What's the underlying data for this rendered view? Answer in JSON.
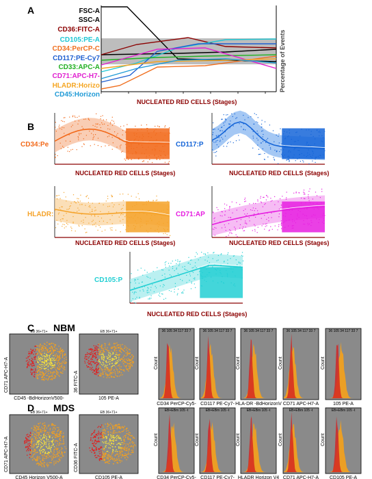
{
  "panels": {
    "a": "A",
    "b": "B",
    "c": "C",
    "d": "D",
    "nbm": "NBM",
    "mds": "MDS"
  },
  "panel_a": {
    "markers": [
      {
        "label": "FSC-A",
        "color": "#000000"
      },
      {
        "label": "SSC-A",
        "color": "#000000"
      },
      {
        "label": "CD36:FITC-A",
        "color": "#8b0000"
      },
      {
        "label": "CD105:PE-A",
        "color": "#1fc7d4"
      },
      {
        "label": "CD34:PerCP-C",
        "color": "#f07020"
      },
      {
        "label": "CD117:PE-Cy7",
        "color": "#1f5fd0"
      },
      {
        "label": "CD33:APC-A",
        "color": "#22b022"
      },
      {
        "label": "CD71:APC-H7-",
        "color": "#e020d0"
      },
      {
        "label": "HLADR:Horizo",
        "color": "#f5a623"
      },
      {
        "label": "CD45:Horizon",
        "color": "#1f9ad6"
      }
    ],
    "ylabel": "Percentage of Events",
    "xlabel": "NUCLEATED RED CELLS (Stages)"
  },
  "panel_b": {
    "xlabel": "NUCLEATED RED CELLS (Stages)",
    "plots": [
      {
        "label": "CD34:Pe",
        "color": "#f26a1b",
        "light": "#f7b894"
      },
      {
        "label": "CD117:P",
        "color": "#1565d8",
        "light": "#7fb0ef"
      },
      {
        "label": "HLADR:",
        "color": "#f5a32a",
        "light": "#f9d29a"
      },
      {
        "label": "CD71:AP",
        "color": "#e61fe0",
        "light": "#f2a0ef"
      },
      {
        "label": "CD105:P",
        "color": "#22cfd3",
        "light": "#9de9eb"
      }
    ]
  },
  "panel_c": {
    "scatters": [
      {
        "gate": "EB 36+71+",
        "ylabel": "CD71 APC-H7-A",
        "xlabel": "CD45 -BdHorizonV500-"
      },
      {
        "gate": "EB 36+71+",
        "ylabel": "36 FITC-A",
        "xlabel": "105 PE-A"
      }
    ],
    "hist_header": "36 105 34 117 33 7",
    "count": "Count",
    "histograms": [
      "CD34 PerCP-Cy5-",
      "CD117 PE-Cy7-",
      "HLA-DR -BdHorizonV",
      "CD71 APC-H7-A",
      "105 PE-A"
    ]
  },
  "panel_d": {
    "scatters": [
      {
        "gate": "EB 36+71+",
        "ylabel": "CD71 APC-H7-A",
        "xlabel": "CD45 Horizon V500-A"
      },
      {
        "gate": "EB 36+71+",
        "ylabel": "CD36 FITC-A",
        "xlabel": "CD105 PE-A"
      }
    ],
    "hist_header": "EB+EBm 105 -t",
    "count": "Count",
    "histograms": [
      "CD34 PerCP-Cy5-",
      "CD117 PE-Cy7-",
      "HLADR Horizon V4",
      "CD71 APC-H7-A",
      "CD105 PE-A"
    ]
  }
}
